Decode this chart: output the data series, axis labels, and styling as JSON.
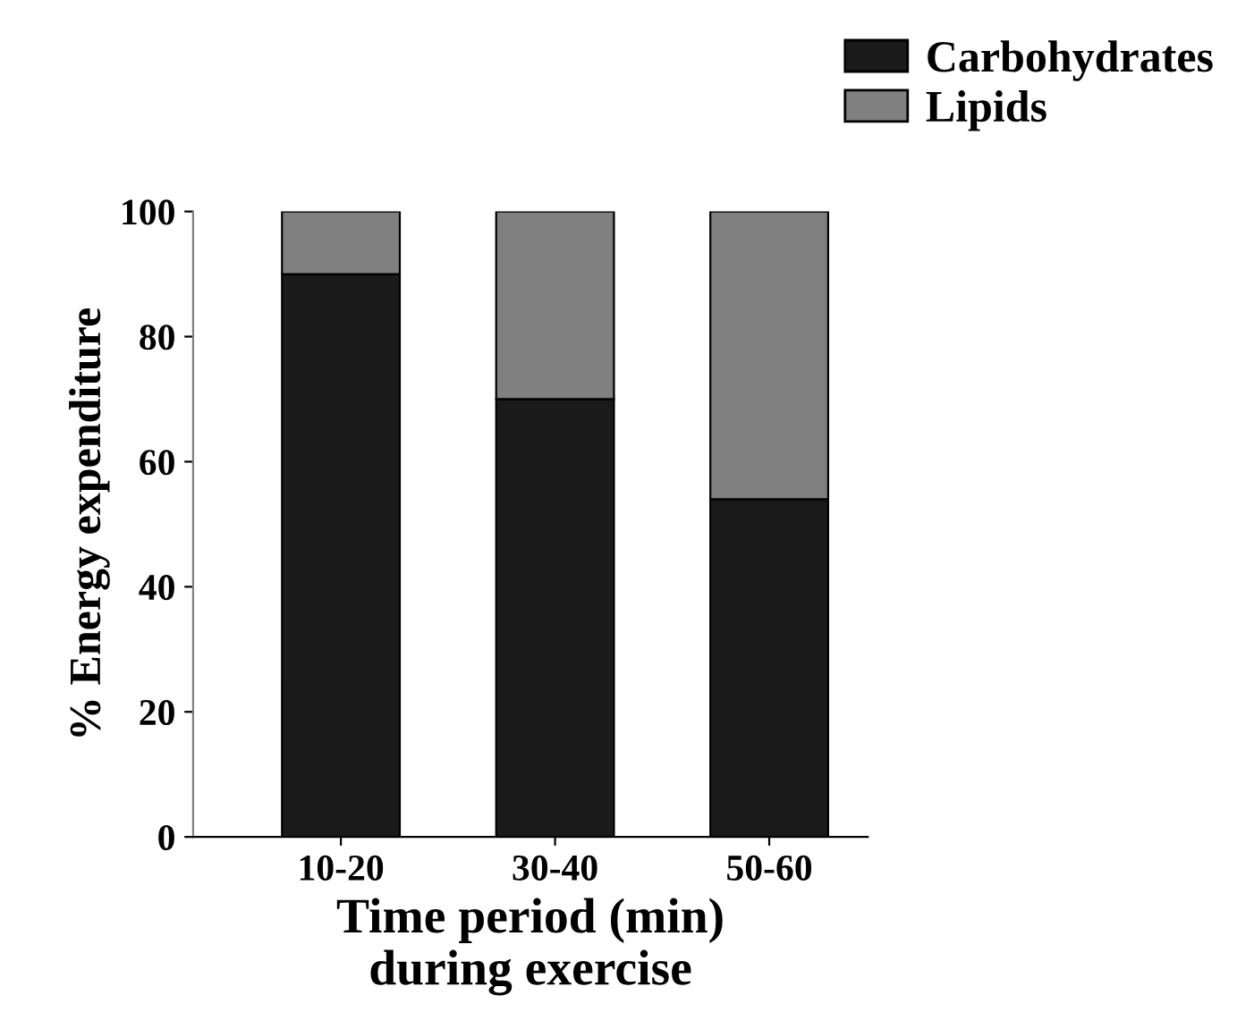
{
  "chart_data": {
    "type": "bar",
    "stacked": true,
    "xlabel": "Time period (min)\nduring exercise",
    "ylabel": "% Energy expenditure",
    "categories": [
      "10-20",
      "30-40",
      "50-60"
    ],
    "series": [
      {
        "name": "Carbohydrates",
        "color": "#1a1a1a",
        "values": [
          90,
          70,
          54
        ]
      },
      {
        "name": "Lipids",
        "color": "#808080",
        "values": [
          10,
          30,
          46
        ]
      }
    ],
    "ylim": [
      0,
      100
    ],
    "yticks": [
      0,
      20,
      40,
      60,
      80,
      100
    ],
    "grid": false,
    "legend": "top right"
  }
}
